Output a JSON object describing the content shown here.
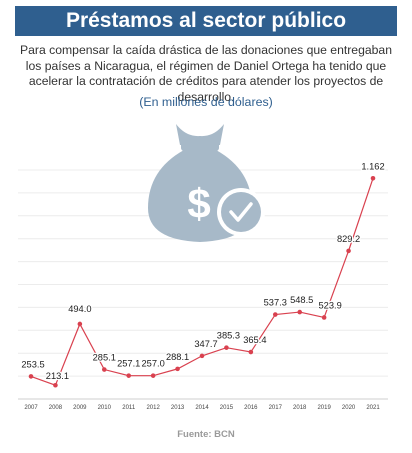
{
  "title": "Préstamos al sector público",
  "subtitle": "Para compensar la caída drástica de las donaciones que entregaban los países a Nicaragua, el régimen de Daniel Ortega ha tenido que acelerar la contratación de créditos para atender los proyectos de desarrollo.",
  "units_note": "(En millones de dólares)",
  "source": "Fuente: BCN",
  "icon": "money-bag-check-icon",
  "colors": {
    "title_bg": "#2f5f8f",
    "line": "#d9414f",
    "icon": "#a7b9c8",
    "units_text": "#2f5f8f"
  },
  "chart_data": {
    "type": "line",
    "title": "",
    "xlabel": "",
    "ylabel": "",
    "grid": true,
    "ylim": [
      150,
      1200
    ],
    "categories": [
      "2007",
      "2008",
      "2009",
      "2010",
      "2011",
      "2012",
      "2013",
      "2014",
      "2015",
      "2016",
      "2017",
      "2018",
      "2019",
      "2020",
      "2021"
    ],
    "values": [
      253.5,
      213.1,
      494.0,
      285.1,
      257.1,
      257.0,
      288.1,
      347.7,
      385.3,
      365.4,
      537.3,
      548.5,
      523.9,
      829.2,
      1162
    ],
    "data_labels": [
      "253.5",
      "213.1",
      "494.0",
      "285.1",
      "257.1",
      "257.0",
      "288.1",
      "347.7",
      "385.3",
      "365.4",
      "537.3",
      "548.5",
      "523.9",
      "829.2",
      "1.162"
    ]
  }
}
